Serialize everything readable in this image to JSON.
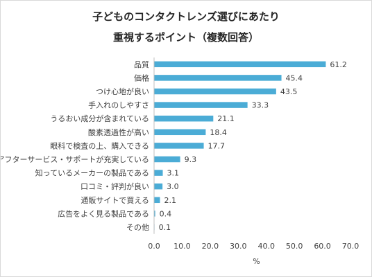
{
  "chart_data": {
    "type": "bar",
    "orientation": "horizontal",
    "title": "子どものコンタクトレンズ選びにあたり",
    "subtitle": "重視するポイント（複数回答）",
    "xlabel": "%",
    "ylabel": "",
    "xlim": [
      0,
      70
    ],
    "xticks": [
      "0.0",
      "10.0",
      "20.0",
      "30.0",
      "40.0",
      "50.0",
      "60.0",
      "70.0"
    ],
    "grid": false,
    "legend": "none",
    "bar_color": "#4bacd6",
    "categories": [
      "品質",
      "価格",
      "つけ心地が良い",
      "手入れのしやすさ",
      "うるおい成分が含まれている",
      "酸素透過性が高い",
      "眼科で検査の上、購入できる",
      "アフターサービス・サポートが充実している",
      "知っているメーカーの製品である",
      "口コミ・評判が良い",
      "通販サイトで買える",
      "広告をよく見る製品である",
      "その他"
    ],
    "values": [
      61.2,
      45.4,
      43.5,
      33.3,
      21.1,
      18.4,
      17.7,
      9.3,
      3.1,
      3.0,
      2.1,
      0.4,
      0.1
    ],
    "value_labels": [
      "61.2",
      "45.4",
      "43.5",
      "33.3",
      "21.1",
      "18.4",
      "17.7",
      "9.3",
      "3.1",
      "3.0",
      "2.1",
      "0.4",
      "0.1"
    ]
  }
}
